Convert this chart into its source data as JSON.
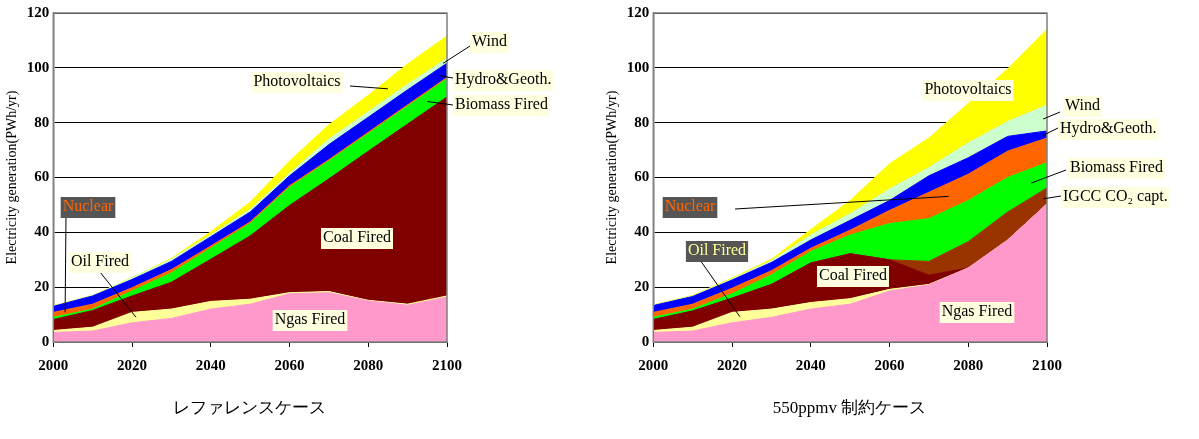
{
  "chart_data": [
    {
      "type": "area",
      "title": "レファレンスケース",
      "ylabel": "Electricity generation(PWh/yr)",
      "stacked": true,
      "x": [
        2000,
        2010,
        2020,
        2030,
        2040,
        2050,
        2060,
        2070,
        2080,
        2090,
        2100
      ],
      "xlim": [
        2000,
        2100
      ],
      "xticks": [
        2000,
        2020,
        2040,
        2060,
        2080,
        2100
      ],
      "ylim": [
        0,
        120
      ],
      "yticks": [
        0,
        20,
        40,
        60,
        80,
        100,
        120
      ],
      "grid": "y",
      "legend": false,
      "series": [
        {
          "name": "Ngas Fired",
          "color": "#ff99cc",
          "values": [
            3.5,
            4,
            7,
            8.6,
            12,
            13.8,
            17.6,
            18,
            15,
            13.4,
            16.4
          ]
        },
        {
          "name": "Oil Fired",
          "color": "#ffff99",
          "values": [
            0.7,
            1.4,
            3.8,
            3.4,
            2.8,
            1.8,
            0.4,
            0.4,
            0.2,
            0.4,
            0.4
          ]
        },
        {
          "name": "Coal Fired",
          "color": "#800000",
          "values": [
            4,
            6.1,
            6,
            9.8,
            15.4,
            23.1,
            31.8,
            41.1,
            54.4,
            65.7,
            72.6
          ]
        },
        {
          "name": "Biomass Fired",
          "color": "#00ff00",
          "values": [
            0.8,
            0.5,
            1.8,
            3.4,
            4,
            4.5,
            6.6,
            6.5,
            6.4,
            6.5,
            6.6
          ]
        },
        {
          "name": "Nuclear",
          "color": "#ff6600",
          "values": [
            1.8,
            1.8,
            1.2,
            1.2,
            0.8,
            0.6,
            0.6,
            0.5,
            0.5,
            0.5,
            0.5
          ]
        },
        {
          "name": "Hydro&Geoth.",
          "color": "#0000ff",
          "values": [
            2.2,
            3,
            3,
            3,
            3.4,
            3.6,
            3.6,
            5.5,
            5.5,
            5.5,
            5.2
          ]
        },
        {
          "name": "Wind",
          "color": "#ccffcc",
          "values": [
            0.2,
            0.1,
            0.6,
            0.8,
            0.6,
            0.9,
            0.9,
            2,
            2,
            2,
            1.8
          ]
        },
        {
          "name": "Photovoltaics",
          "color": "#ffff00",
          "values": [
            0.1,
            0.1,
            0.1,
            0.3,
            1.2,
            2.7,
            4.5,
            5.2,
            6,
            7.4,
            8.1
          ]
        }
      ]
    },
    {
      "type": "area",
      "title": "550ppmv 制約ケース",
      "ylabel": "Electricity generation(PWh/yr)",
      "stacked": true,
      "x": [
        2000,
        2010,
        2020,
        2030,
        2040,
        2050,
        2060,
        2070,
        2080,
        2090,
        2100
      ],
      "xlim": [
        2000,
        2100
      ],
      "xticks": [
        2000,
        2020,
        2040,
        2060,
        2080,
        2100
      ],
      "ylim": [
        0,
        120
      ],
      "yticks": [
        0,
        20,
        40,
        60,
        80,
        100,
        120
      ],
      "grid": "y",
      "legend": false,
      "series": [
        {
          "name": "Ngas Fired",
          "color": "#ff99cc",
          "values": [
            3.5,
            4,
            7,
            9,
            12,
            13.8,
            18.6,
            20.8,
            27,
            37.2,
            50.4
          ]
        },
        {
          "name": "Oil Fired",
          "color": "#ffff99",
          "values": [
            0.7,
            1.4,
            3.8,
            3,
            2.4,
            2,
            0.6,
            0.2,
            0,
            0,
            0
          ]
        },
        {
          "name": "Coal Fired",
          "color": "#800000",
          "values": [
            4,
            5.9,
            5.2,
            9,
            14.4,
            16.4,
            10.8,
            3.4,
            0,
            0,
            0
          ]
        },
        {
          "name": "IGCC CO₂ capt.",
          "color": "#993300",
          "values": [
            0,
            0,
            0,
            0,
            0,
            0,
            0,
            5,
            9.6,
            10.2,
            5.8
          ]
        },
        {
          "name": "Biomass Fired",
          "color": "#00ff00",
          "values": [
            0.8,
            0.7,
            1.6,
            3.5,
            4.2,
            6.8,
            13.2,
            15.6,
            15,
            12.6,
            9.2
          ]
        },
        {
          "name": "Nuclear",
          "color": "#ff6600",
          "values": [
            1.8,
            1.8,
            2,
            1.5,
            1.2,
            1.8,
            4.8,
            9.6,
            9.6,
            9.6,
            9
          ]
        },
        {
          "name": "Hydro&Geoth.",
          "color": "#0000ff",
          "values": [
            2.5,
            2.8,
            3,
            3,
            3,
            3.6,
            3.6,
            6,
            6,
            5.4,
            2.6
          ]
        },
        {
          "name": "Wind",
          "color": "#ccffcc",
          "values": [
            0.2,
            0.2,
            0.4,
            0.6,
            1.8,
            2.4,
            4.2,
            3,
            5.4,
            5.4,
            9.4
          ]
        },
        {
          "name": "Photovoltaics",
          "color": "#ffff00",
          "values": [
            0.1,
            0.2,
            0.3,
            0.6,
            2,
            4.8,
            9.2,
            10.8,
            14.4,
            19.2,
            27.6
          ]
        }
      ]
    }
  ]
}
